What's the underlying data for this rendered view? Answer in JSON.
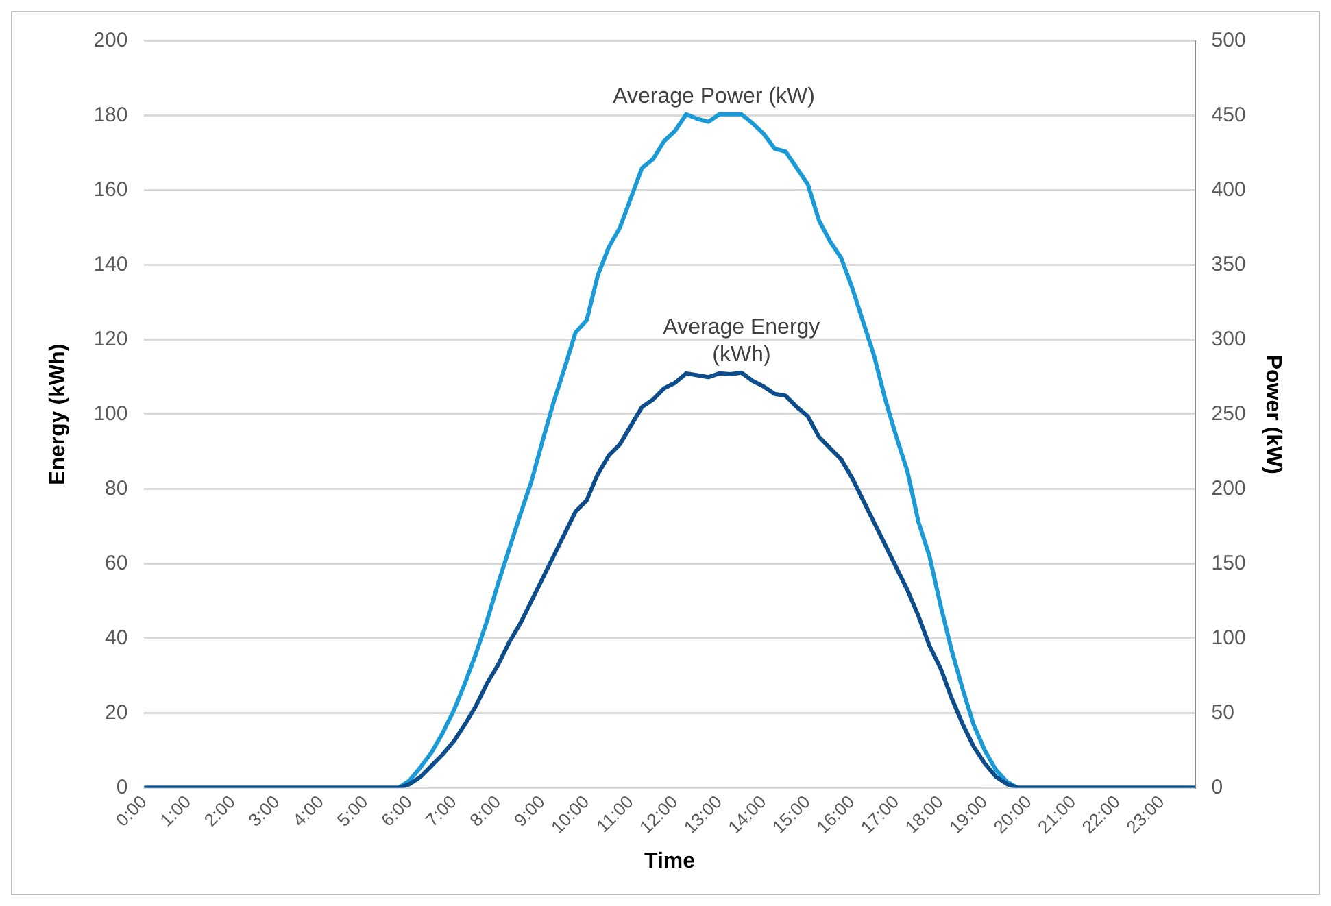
{
  "chart_data": {
    "type": "line",
    "xlabel": "Time",
    "ylabel": "Energy (kWh)",
    "y2label": "Power (kW)",
    "x": [
      0,
      5.75,
      6,
      6.25,
      6.5,
      6.75,
      7,
      7.25,
      7.5,
      7.75,
      8,
      8.25,
      8.5,
      8.75,
      9,
      9.25,
      9.5,
      9.75,
      10,
      10.25,
      10.5,
      10.75,
      11,
      11.25,
      11.5,
      11.75,
      12,
      12.25,
      12.5,
      12.75,
      13,
      13.25,
      13.5,
      13.75,
      14,
      14.25,
      14.5,
      14.75,
      15,
      15.25,
      15.5,
      15.75,
      16,
      16.25,
      16.5,
      16.75,
      17,
      17.25,
      17.5,
      17.75,
      18,
      18.25,
      18.5,
      18.75,
      19,
      19.25,
      19.5,
      19.75,
      23.75
    ],
    "series": [
      {
        "name": "Average Energy (kWh)",
        "color": "#0e4d8c",
        "values": [
          0,
          0,
          1,
          3,
          6,
          9,
          12.5,
          17,
          22,
          28,
          33,
          39,
          44,
          50,
          56,
          62,
          68,
          74,
          77,
          84,
          89,
          92,
          97,
          102,
          104,
          107,
          108.5,
          111,
          110.5,
          110,
          111,
          110.8,
          111.2,
          109,
          107.5,
          105.5,
          105,
          102,
          99.5,
          94,
          91,
          88,
          83,
          77,
          71,
          65,
          59,
          53,
          46,
          38,
          32,
          24,
          17,
          11,
          6.5,
          3,
          1,
          0,
          0
        ]
      },
      {
        "name": "Average Power (kW)",
        "color": "#1a9ad6",
        "axis": "y2",
        "values": [
          0,
          0,
          5,
          14,
          24,
          37,
          52,
          70,
          90,
          112,
          137,
          160,
          183,
          205,
          232,
          258,
          281,
          305,
          313,
          343,
          362,
          375,
          395,
          415,
          421,
          433,
          440,
          451,
          448,
          446,
          451,
          451,
          451,
          445,
          438,
          428,
          426,
          415,
          404,
          380,
          366,
          355,
          335,
          312,
          289,
          260,
          235,
          212,
          178,
          155,
          122,
          92,
          66,
          42,
          25,
          12,
          4,
          0,
          0
        ]
      }
    ],
    "xlim": [
      0,
      23.75
    ],
    "xticks": [
      {
        "value": 0,
        "label": "0:00"
      },
      {
        "value": 1,
        "label": "1:00"
      },
      {
        "value": 2,
        "label": "2:00"
      },
      {
        "value": 3,
        "label": "3:00"
      },
      {
        "value": 4,
        "label": "4:00"
      },
      {
        "value": 5,
        "label": "5:00"
      },
      {
        "value": 6,
        "label": "6:00"
      },
      {
        "value": 7,
        "label": "7:00"
      },
      {
        "value": 8,
        "label": "8:00"
      },
      {
        "value": 9,
        "label": "9:00"
      },
      {
        "value": 10,
        "label": "10:00"
      },
      {
        "value": 11,
        "label": "11:00"
      },
      {
        "value": 12,
        "label": "12:00"
      },
      {
        "value": 13,
        "label": "13:00"
      },
      {
        "value": 14,
        "label": "14:00"
      },
      {
        "value": 15,
        "label": "15:00"
      },
      {
        "value": 16,
        "label": "16:00"
      },
      {
        "value": 17,
        "label": "17:00"
      },
      {
        "value": 18,
        "label": "18:00"
      },
      {
        "value": 19,
        "label": "19:00"
      },
      {
        "value": 20,
        "label": "20:00"
      },
      {
        "value": 21,
        "label": "21:00"
      },
      {
        "value": 22,
        "label": "22:00"
      },
      {
        "value": 23,
        "label": "23:00"
      }
    ],
    "ylim": [
      0,
      200
    ],
    "yticks": [
      0,
      20,
      40,
      60,
      80,
      100,
      120,
      140,
      160,
      180,
      200
    ],
    "y2lim": [
      0,
      500
    ],
    "y2ticks": [
      0,
      50,
      100,
      150,
      200,
      250,
      300,
      350,
      400,
      450,
      500
    ],
    "grid": "y",
    "legend": false,
    "marker": "none",
    "line_style": "solid"
  }
}
